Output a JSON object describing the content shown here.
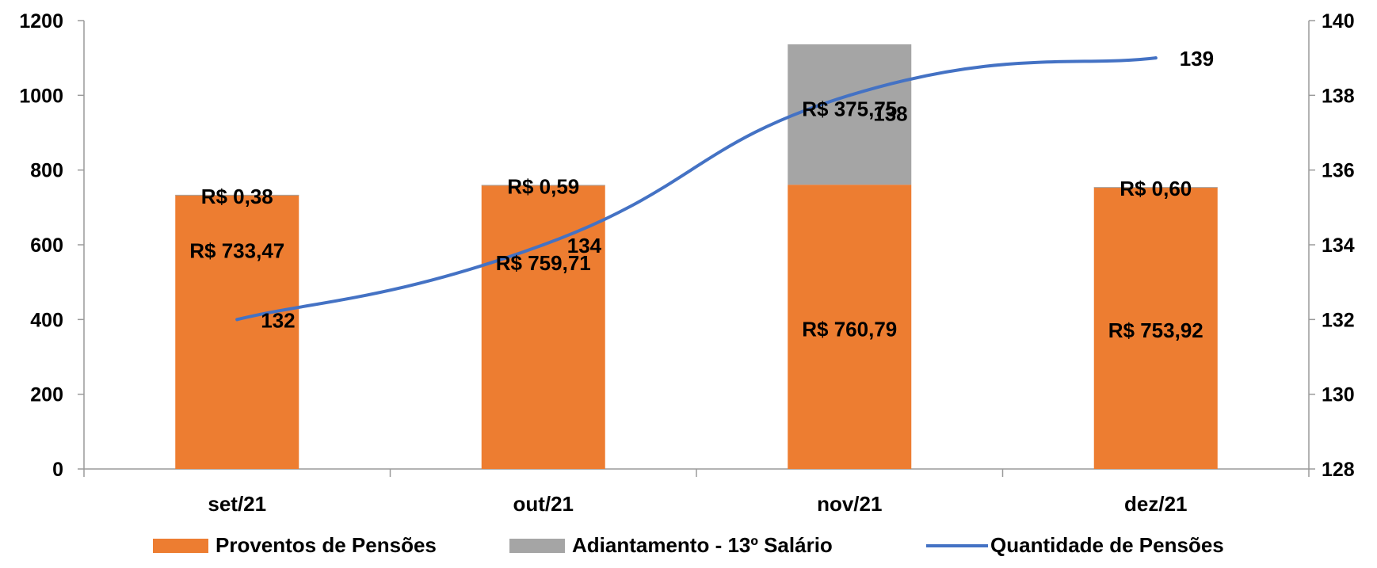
{
  "chart_data": {
    "type": "bar",
    "stacked": true,
    "categories": [
      "set/21",
      "out/21",
      "nov/21",
      "dez/21"
    ],
    "y_left": {
      "ylim": [
        0,
        1200
      ],
      "ticks": [
        "0",
        "200",
        "400",
        "600",
        "800",
        "1000",
        "1200"
      ]
    },
    "y_right": {
      "ylim": [
        128,
        140
      ],
      "ticks": [
        "128",
        "130",
        "132",
        "134",
        "136",
        "138",
        "140"
      ]
    },
    "series": [
      {
        "name": "Proventos de Pensões",
        "type": "bar",
        "axis": "left",
        "color": "#ED7D31",
        "values": [
          733.47,
          759.71,
          760.79,
          753.92
        ],
        "labels": [
          "R$ 733,47",
          "R$ 759,71",
          "R$ 760,79",
          "R$ 753,92"
        ]
      },
      {
        "name": "Adiantamento - 13º Salário",
        "type": "bar",
        "axis": "left",
        "color": "#A5A5A5",
        "values": [
          0.38,
          0.59,
          375.75,
          0.6
        ],
        "labels": [
          "R$ 0,38",
          "R$ 0,59",
          "R$ 375,75",
          "R$ 0,60"
        ]
      },
      {
        "name": "Quantidade de Pensões",
        "type": "line",
        "axis": "right",
        "color": "#4472C4",
        "values": [
          132,
          134,
          138,
          139
        ],
        "labels": [
          "132",
          "134",
          "138",
          "139"
        ]
      }
    ],
    "legend": "bottom",
    "grid": false
  }
}
